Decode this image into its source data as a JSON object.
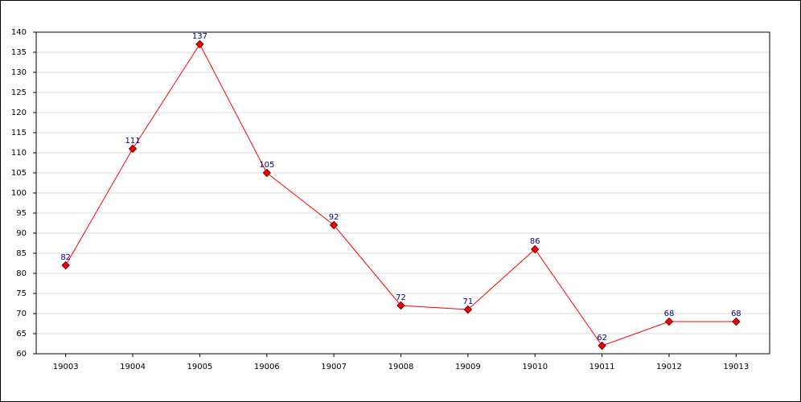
{
  "chart_data": {
    "type": "line",
    "categories": [
      "19003",
      "19004",
      "19005",
      "19006",
      "19007",
      "19008",
      "19009",
      "19010",
      "19011",
      "19012",
      "19013"
    ],
    "series": [
      {
        "color": "#ff0000",
        "values": [
          82,
          111,
          137,
          105,
          92,
          72,
          71,
          86,
          62,
          68,
          68
        ]
      }
    ],
    "ylim": [
      60,
      140
    ],
    "yticks": [
      60,
      65,
      70,
      75,
      80,
      85,
      90,
      95,
      100,
      105,
      110,
      115,
      120,
      125,
      130,
      135,
      140
    ],
    "grid": true
  }
}
